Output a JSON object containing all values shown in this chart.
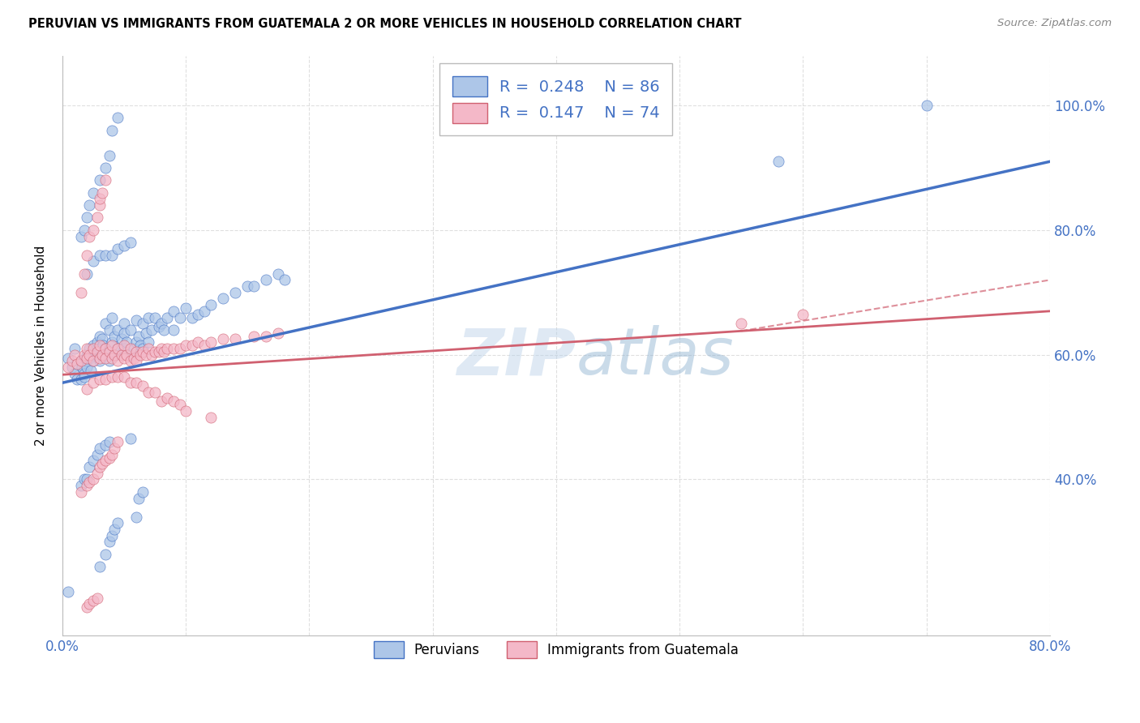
{
  "title": "PERUVIAN VS IMMIGRANTS FROM GUATEMALA 2 OR MORE VEHICLES IN HOUSEHOLD CORRELATION CHART",
  "source": "Source: ZipAtlas.com",
  "ylabel": "2 or more Vehicles in Household",
  "legend_label1": "Peruvians",
  "legend_label2": "Immigrants from Guatemala",
  "R1": 0.248,
  "N1": 86,
  "R2": 0.147,
  "N2": 74,
  "color1": "#adc6e8",
  "color2": "#f4b8c8",
  "line1_color": "#4472c4",
  "line2_color": "#d06070",
  "watermark_color": "#b8d0e8",
  "xlim": [
    0.0,
    0.8
  ],
  "ylim": [
    0.15,
    1.08
  ],
  "grid_color": "#d8d8d8",
  "peruvian_x": [
    0.005,
    0.008,
    0.01,
    0.01,
    0.012,
    0.015,
    0.015,
    0.016,
    0.017,
    0.018,
    0.018,
    0.02,
    0.02,
    0.02,
    0.022,
    0.022,
    0.023,
    0.025,
    0.025,
    0.025,
    0.028,
    0.028,
    0.03,
    0.03,
    0.03,
    0.032,
    0.033,
    0.034,
    0.035,
    0.035,
    0.038,
    0.038,
    0.04,
    0.04,
    0.042,
    0.043,
    0.045,
    0.045,
    0.048,
    0.05,
    0.05,
    0.05,
    0.052,
    0.055,
    0.055,
    0.058,
    0.06,
    0.06,
    0.062,
    0.063,
    0.065,
    0.065,
    0.068,
    0.07,
    0.07,
    0.072,
    0.075,
    0.078,
    0.08,
    0.082,
    0.085,
    0.09,
    0.09,
    0.095,
    0.1,
    0.105,
    0.11,
    0.115,
    0.12,
    0.13,
    0.14,
    0.15,
    0.155,
    0.165,
    0.175,
    0.18,
    0.02,
    0.025,
    0.03,
    0.035,
    0.04,
    0.045,
    0.05,
    0.055,
    0.58,
    0.7
  ],
  "peruvian_y": [
    0.595,
    0.58,
    0.61,
    0.57,
    0.56,
    0.59,
    0.56,
    0.58,
    0.575,
    0.57,
    0.565,
    0.6,
    0.59,
    0.58,
    0.61,
    0.595,
    0.575,
    0.615,
    0.6,
    0.59,
    0.62,
    0.6,
    0.63,
    0.61,
    0.59,
    0.625,
    0.615,
    0.6,
    0.65,
    0.61,
    0.64,
    0.59,
    0.66,
    0.62,
    0.63,
    0.6,
    0.64,
    0.61,
    0.625,
    0.65,
    0.635,
    0.61,
    0.62,
    0.64,
    0.6,
    0.61,
    0.655,
    0.62,
    0.63,
    0.615,
    0.65,
    0.61,
    0.635,
    0.66,
    0.62,
    0.64,
    0.66,
    0.645,
    0.65,
    0.64,
    0.66,
    0.67,
    0.64,
    0.66,
    0.675,
    0.66,
    0.665,
    0.67,
    0.68,
    0.69,
    0.7,
    0.71,
    0.71,
    0.72,
    0.73,
    0.72,
    0.73,
    0.75,
    0.76,
    0.76,
    0.76,
    0.77,
    0.775,
    0.78,
    0.91,
    1.0
  ],
  "peruvian_y_outliers": [
    0.22,
    0.26,
    0.28,
    0.3,
    0.31,
    0.32,
    0.33,
    0.34,
    0.37,
    0.38,
    0.39,
    0.4,
    0.4,
    0.42,
    0.43,
    0.44,
    0.45,
    0.455,
    0.46,
    0.465,
    0.79,
    0.8,
    0.82,
    0.84,
    0.86,
    0.88,
    0.9,
    0.92,
    0.96,
    0.98
  ],
  "peruvian_x_outliers": [
    0.005,
    0.03,
    0.035,
    0.038,
    0.04,
    0.042,
    0.045,
    0.06,
    0.062,
    0.065,
    0.015,
    0.018,
    0.02,
    0.022,
    0.025,
    0.028,
    0.03,
    0.035,
    0.038,
    0.055,
    0.015,
    0.018,
    0.02,
    0.022,
    0.025,
    0.03,
    0.035,
    0.038,
    0.04,
    0.045
  ],
  "guatemala_x": [
    0.005,
    0.008,
    0.01,
    0.012,
    0.015,
    0.018,
    0.02,
    0.02,
    0.022,
    0.025,
    0.025,
    0.028,
    0.03,
    0.03,
    0.032,
    0.035,
    0.035,
    0.038,
    0.04,
    0.04,
    0.042,
    0.045,
    0.045,
    0.048,
    0.05,
    0.05,
    0.052,
    0.055,
    0.055,
    0.058,
    0.06,
    0.06,
    0.063,
    0.065,
    0.068,
    0.07,
    0.072,
    0.075,
    0.078,
    0.08,
    0.082,
    0.085,
    0.09,
    0.095,
    0.1,
    0.105,
    0.11,
    0.115,
    0.12,
    0.13,
    0.14,
    0.155,
    0.165,
    0.175,
    0.02,
    0.025,
    0.03,
    0.035,
    0.04,
    0.045,
    0.05,
    0.055,
    0.06,
    0.065,
    0.07,
    0.075,
    0.08,
    0.085,
    0.09,
    0.095,
    0.1,
    0.12,
    0.55,
    0.6
  ],
  "guatemala_y": [
    0.58,
    0.59,
    0.6,
    0.585,
    0.59,
    0.6,
    0.61,
    0.595,
    0.6,
    0.61,
    0.59,
    0.605,
    0.615,
    0.595,
    0.6,
    0.61,
    0.595,
    0.605,
    0.615,
    0.595,
    0.6,
    0.61,
    0.59,
    0.6,
    0.615,
    0.595,
    0.6,
    0.61,
    0.59,
    0.595,
    0.605,
    0.59,
    0.6,
    0.605,
    0.6,
    0.61,
    0.6,
    0.605,
    0.605,
    0.61,
    0.605,
    0.61,
    0.61,
    0.61,
    0.615,
    0.615,
    0.62,
    0.615,
    0.62,
    0.625,
    0.625,
    0.63,
    0.63,
    0.635,
    0.545,
    0.555,
    0.56,
    0.56,
    0.565,
    0.565,
    0.565,
    0.555,
    0.555,
    0.55,
    0.54,
    0.54,
    0.525,
    0.53,
    0.525,
    0.52,
    0.51,
    0.5,
    0.65,
    0.665
  ],
  "guatemala_y_outliers": [
    0.195,
    0.2,
    0.205,
    0.21,
    0.38,
    0.39,
    0.395,
    0.4,
    0.41,
    0.42,
    0.425,
    0.43,
    0.435,
    0.44,
    0.45,
    0.46,
    0.7,
    0.73,
    0.76,
    0.79,
    0.8,
    0.82,
    0.84,
    0.85,
    0.86,
    0.88
  ],
  "guatemala_x_outliers": [
    0.02,
    0.022,
    0.025,
    0.028,
    0.015,
    0.02,
    0.022,
    0.025,
    0.028,
    0.03,
    0.032,
    0.035,
    0.038,
    0.04,
    0.042,
    0.045,
    0.015,
    0.018,
    0.02,
    0.022,
    0.025,
    0.028,
    0.03,
    0.03,
    0.032,
    0.035
  ]
}
